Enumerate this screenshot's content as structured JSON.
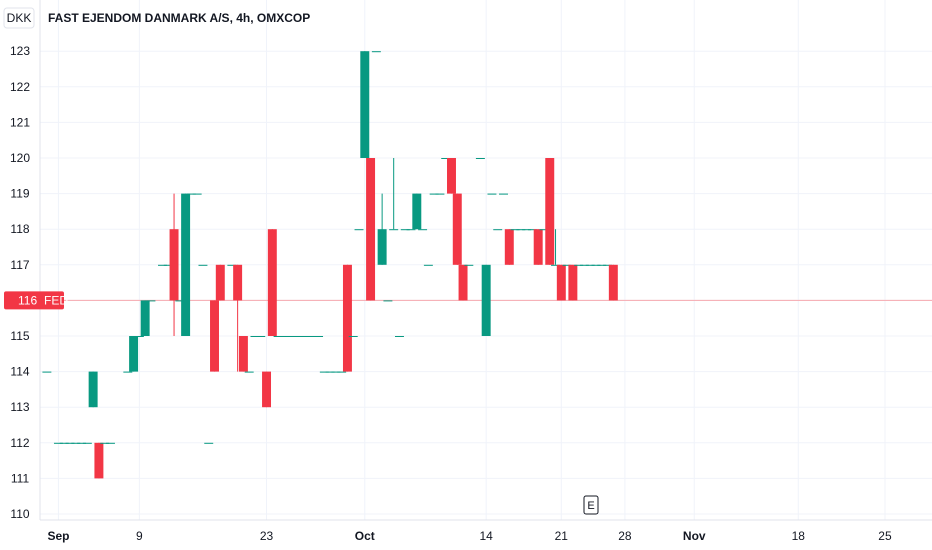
{
  "header": {
    "currency": "DKK",
    "title": "FAST EJENDOM DANMARK A/S, 4h, OMXCOP"
  },
  "price_tag": {
    "value": "116",
    "label": "FED"
  },
  "event_marker": {
    "label": "E"
  },
  "colors": {
    "up": "#089981",
    "down": "#f23645",
    "grid": "#f0f3fa",
    "axis": "#e0e3eb",
    "text": "#131722"
  },
  "chart_data": {
    "type": "candlestick",
    "title": "FAST EJENDOM DANMARK A/S, 4h, OMXCOP",
    "ylim": [
      110,
      123.5
    ],
    "yticks": [
      110,
      111,
      112,
      113,
      114,
      115,
      116,
      117,
      118,
      119,
      120,
      121,
      122,
      123
    ],
    "xticks": [
      {
        "label": "Sep",
        "bar": 2
      },
      {
        "label": "9",
        "bar": 16
      },
      {
        "label": "23",
        "bar": 38
      },
      {
        "label": "Oct",
        "bar": 55
      },
      {
        "label": "14",
        "bar": 76
      },
      {
        "label": "21",
        "bar": 89
      },
      {
        "label": "28",
        "bar": 100
      },
      {
        "label": "Nov",
        "bar": 112
      },
      {
        "label": "18",
        "bar": 130
      },
      {
        "label": "25",
        "bar": 145
      }
    ],
    "last_price": 116,
    "bars": [
      [
        0,
        114,
        114,
        114,
        114
      ],
      [
        2,
        112,
        112,
        112,
        112
      ],
      [
        3,
        112,
        112,
        112,
        112
      ],
      [
        4,
        112,
        112,
        112,
        112
      ],
      [
        5,
        112,
        112,
        112,
        112
      ],
      [
        6,
        112,
        112,
        112,
        112
      ],
      [
        7,
        112,
        112,
        112,
        112
      ],
      [
        8,
        113,
        114,
        113,
        114
      ],
      [
        9,
        112,
        112,
        111,
        111
      ],
      [
        10,
        112,
        112,
        112,
        112
      ],
      [
        11,
        112,
        112,
        112,
        112
      ],
      [
        14,
        114,
        114,
        114,
        114
      ],
      [
        15,
        114,
        115,
        114,
        115
      ],
      [
        16,
        115,
        115,
        115,
        115
      ],
      [
        17,
        115,
        116,
        115,
        116
      ],
      [
        18,
        116,
        116,
        116,
        116
      ],
      [
        20,
        117,
        117,
        117,
        117
      ],
      [
        21,
        117,
        117,
        117,
        117
      ],
      [
        22,
        118,
        119,
        115,
        116
      ],
      [
        23,
        116,
        116,
        116,
        116
      ],
      [
        24,
        115,
        119,
        115,
        119
      ],
      [
        25,
        119,
        119,
        119,
        119
      ],
      [
        26,
        119,
        119,
        119,
        119
      ],
      [
        27,
        117,
        117,
        117,
        117
      ],
      [
        28,
        112,
        112,
        112,
        112
      ],
      [
        29,
        116,
        116,
        114,
        114
      ],
      [
        30,
        117,
        117,
        116,
        116
      ],
      [
        32,
        117,
        117,
        117,
        117
      ],
      [
        33,
        117,
        117,
        114,
        116
      ],
      [
        34,
        115,
        115,
        114,
        114
      ],
      [
        35,
        114,
        114,
        114,
        114
      ],
      [
        36,
        115,
        115,
        115,
        115
      ],
      [
        37,
        115,
        115,
        115,
        115
      ],
      [
        38,
        114,
        114,
        113,
        113
      ],
      [
        39,
        118,
        118,
        115,
        115
      ],
      [
        40,
        115,
        115,
        115,
        115
      ],
      [
        41,
        115,
        115,
        115,
        115
      ],
      [
        42,
        115,
        115,
        115,
        115
      ],
      [
        43,
        115,
        115,
        115,
        115
      ],
      [
        44,
        115,
        115,
        115,
        115
      ],
      [
        45,
        115,
        115,
        115,
        115
      ],
      [
        46,
        115,
        115,
        115,
        115
      ],
      [
        47,
        115,
        115,
        115,
        115
      ],
      [
        48,
        114,
        114,
        114,
        114
      ],
      [
        49,
        114,
        114,
        114,
        114
      ],
      [
        50,
        114,
        114,
        114,
        114
      ],
      [
        51,
        114,
        114,
        114,
        114
      ],
      [
        52,
        117,
        117,
        114,
        114
      ],
      [
        53,
        115,
        115,
        115,
        115
      ],
      [
        54,
        118,
        118,
        118,
        118
      ],
      [
        55,
        120,
        123,
        120,
        123
      ],
      [
        56,
        120,
        120,
        116,
        116
      ],
      [
        57,
        123,
        123,
        123,
        123
      ],
      [
        58,
        117,
        119,
        117,
        118
      ],
      [
        59,
        116,
        116,
        116,
        116
      ],
      [
        60,
        118,
        120,
        118,
        118
      ],
      [
        61,
        115,
        115,
        115,
        115
      ],
      [
        62,
        118,
        118,
        118,
        118
      ],
      [
        63,
        118,
        118,
        118,
        118
      ],
      [
        64,
        118,
        119,
        118,
        119
      ],
      [
        65,
        118,
        118,
        118,
        118
      ],
      [
        66,
        117,
        117,
        117,
        117
      ],
      [
        67,
        119,
        119,
        119,
        119
      ],
      [
        68,
        119,
        119,
        119,
        119
      ],
      [
        69,
        120,
        120,
        120,
        120
      ],
      [
        70,
        120,
        120,
        119,
        119
      ],
      [
        71,
        119,
        119,
        117,
        117
      ],
      [
        72,
        117,
        117,
        116,
        116
      ],
      [
        73,
        117,
        117,
        117,
        117
      ],
      [
        75,
        120,
        120,
        120,
        120
      ],
      [
        76,
        115,
        117,
        115,
        117
      ],
      [
        77,
        119,
        119,
        119,
        119
      ],
      [
        78,
        118,
        118,
        118,
        118
      ],
      [
        79,
        119,
        119,
        119,
        119
      ],
      [
        80,
        118,
        118,
        117,
        117
      ],
      [
        81,
        118,
        118,
        118,
        118
      ],
      [
        82,
        118,
        118,
        118,
        118
      ],
      [
        83,
        118,
        118,
        118,
        118
      ],
      [
        84,
        118,
        118,
        118,
        118
      ],
      [
        85,
        118,
        118,
        117,
        117
      ],
      [
        86,
        118,
        118,
        118,
        118
      ],
      [
        87,
        120,
        120,
        117,
        117
      ],
      [
        88,
        117,
        118,
        117,
        117
      ],
      [
        89,
        117,
        117,
        116,
        116
      ],
      [
        90,
        117,
        117,
        117,
        117
      ],
      [
        91,
        117,
        117,
        116,
        116
      ],
      [
        92,
        117,
        117,
        117,
        117
      ],
      [
        93,
        117,
        117,
        117,
        117
      ],
      [
        94,
        117,
        117,
        117,
        117
      ],
      [
        95,
        117,
        117,
        117,
        117
      ],
      [
        96,
        117,
        117,
        117,
        117
      ],
      [
        97,
        117,
        117,
        117,
        117
      ],
      [
        98,
        117,
        117,
        116,
        116
      ]
    ]
  }
}
